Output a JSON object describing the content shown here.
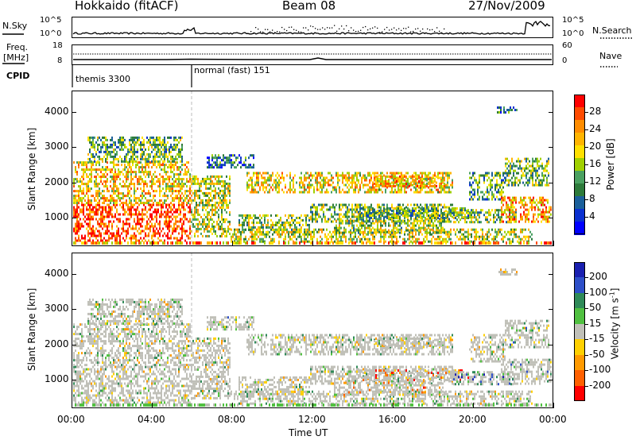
{
  "header": {
    "station": "Hokkaido (fitACF)",
    "beam": "Beam 08",
    "date": "27/Nov/2009"
  },
  "noise_panel": {
    "left_label": "N.Sky",
    "right_label": "N.Search",
    "left_ticks": [
      "10^5",
      "10^0"
    ],
    "right_ticks": [
      "10^5",
      "10^0"
    ]
  },
  "freq_panel": {
    "left_label_1": "Freq.",
    "left_label_2": "[MHz]",
    "right_label": "Nave",
    "left_ticks": [
      "18",
      "8"
    ],
    "right_ticks": [
      "60",
      "0"
    ]
  },
  "cpid_panel": {
    "label": "CPID",
    "mode_1": "themis 3300",
    "mode_2": "normal (fast) 151"
  },
  "chart_data": [
    {
      "type": "heatmap",
      "title": "",
      "quantity": "Power",
      "ylabel": "Slant Range [km]",
      "xlabel": "",
      "ylim": [
        200,
        4600
      ],
      "yticks": [
        1000,
        2000,
        3000,
        4000
      ],
      "colorbar": {
        "label": "Power [dB]",
        "ticks": [
          "28",
          "24",
          "20",
          "16",
          "12",
          "8",
          "4"
        ],
        "colors": [
          "#ff0000",
          "#ff4a00",
          "#ff8c00",
          "#ffb400",
          "#ffe000",
          "#a0d000",
          "#4aa060",
          "#2d7a3a",
          "#1a5f9a",
          "#0a30d0",
          "#0000ff"
        ]
      }
    },
    {
      "type": "heatmap",
      "title": "",
      "quantity": "Velocity",
      "ylabel": "Slant Range [km]",
      "xlabel": "Time UT",
      "ylim": [
        200,
        4600
      ],
      "yticks": [
        1000,
        2000,
        3000,
        4000
      ],
      "xticks": [
        "00:00",
        "04:00",
        "08:00",
        "12:00",
        "16:00",
        "20:00",
        "00:00"
      ],
      "colorbar": {
        "label": "Velocity [m s",
        "label_sup": "-1",
        "label_end": "]",
        "ticks": [
          "200",
          "100",
          "50",
          "15",
          "-15",
          "-50",
          "-100",
          "-200"
        ],
        "colors": [
          "#1a20b0",
          "#2d4fc8",
          "#2f8a58",
          "#50c040",
          "#c0c0b8",
          "#ffd000",
          "#ff9a00",
          "#ff6000",
          "#ff0000"
        ]
      }
    }
  ]
}
